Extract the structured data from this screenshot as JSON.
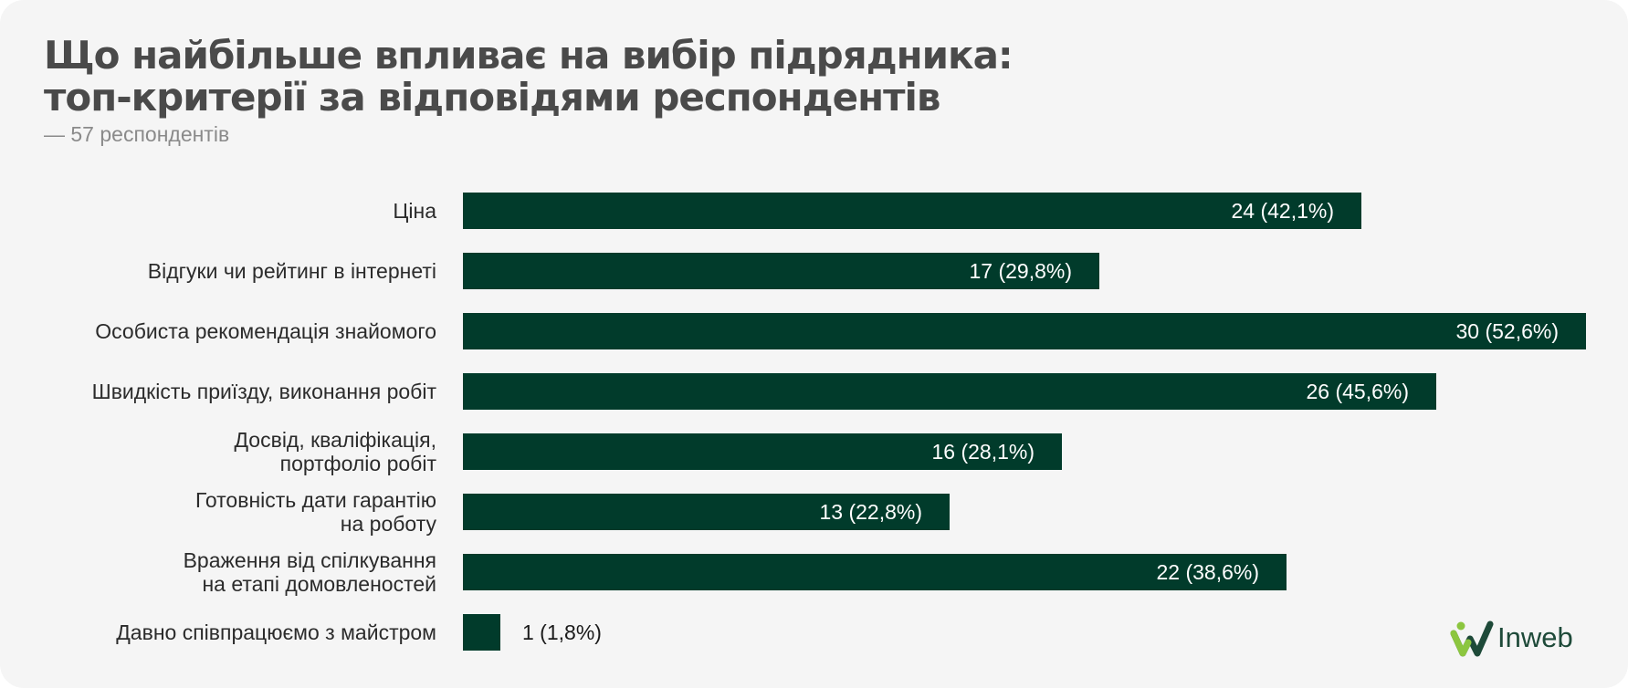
{
  "header": {
    "title": "Що найбільше впливає на вибір підрядника:\nтоп-критерії за відповідями респондентів",
    "subtitle": "— 57 респондентів"
  },
  "brand": {
    "name": "Inweb"
  },
  "colors": {
    "bar": "#013b2b",
    "bar_label_inside": "#ffffff",
    "bar_label_outside": "#1a1a1a",
    "category_label": "#2b2b2b",
    "background": "#f5f5f5",
    "logo_green": "#8cc63f"
  },
  "chart_data": {
    "type": "bar",
    "orientation": "horizontal",
    "title": "Що найбільше впливає на вибір підрядника: топ-критерії за відповідями респондентів",
    "subtitle": "— 57 респондентів",
    "categories": [
      "Ціна",
      "Відгуки чи рейтинг в інтернеті",
      "Особиста рекомендація знайомого",
      "Швидкість приїзду, виконання робіт",
      "Досвід, кваліфікація,\nпортфоліо робіт",
      "Готовність дати гарантію\nна роботу",
      "Враження від спілкування\nна етапі домовленостей",
      "Давно співпрацюємо з майстром"
    ],
    "values": [
      24,
      17,
      30,
      26,
      16,
      13,
      22,
      1
    ],
    "data_labels": [
      "24 (42,1%)",
      "17 (29,8%)",
      "30 (52,6%)",
      "26 (45,6%)",
      "16 (28,1%)",
      "13 (22,8%)",
      "22 (38,6%)",
      "1 (1,8%)"
    ],
    "xlim": [
      0,
      30
    ],
    "grid": false,
    "legend": "none"
  }
}
